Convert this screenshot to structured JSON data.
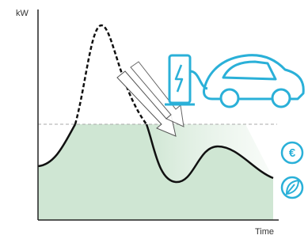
{
  "axis": {
    "y_label": "kW",
    "x_label": "Time"
  },
  "icons": {
    "cost": "€"
  }
}
